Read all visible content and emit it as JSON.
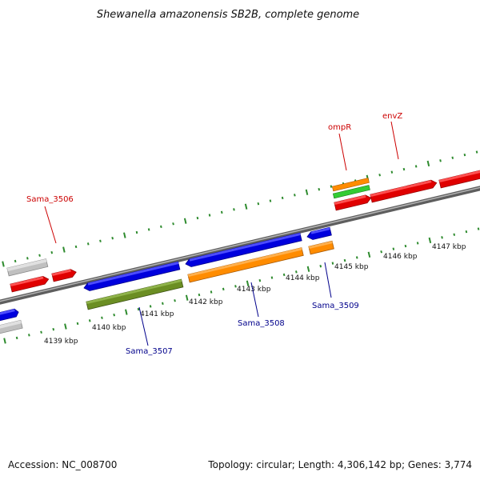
{
  "title": "Shewanella amazonensis SB2B, complete genome",
  "footer": {
    "accession": "Accession: NC_008700",
    "summary": "Topology: circular; Length: 4,306,142 bp; Genes: 3,774"
  },
  "colors": {
    "backbone": "#808080",
    "tick": "#2e8b2e",
    "forward_label": "#cc0000",
    "reverse_label": "#00008b"
  },
  "kbp_labels": [
    "4139 kbp",
    "4140 kbp",
    "4141 kbp",
    "4142 kbp",
    "4143 kbp",
    "4144 kbp",
    "4145 kbp",
    "4146 kbp",
    "4147 kbp"
  ],
  "gene_labels": {
    "forward": [
      "Sama_3506",
      "ompR",
      "envZ"
    ],
    "reverse": [
      "Sama_3507",
      "Sama_3508",
      "Sama_3509"
    ]
  }
}
